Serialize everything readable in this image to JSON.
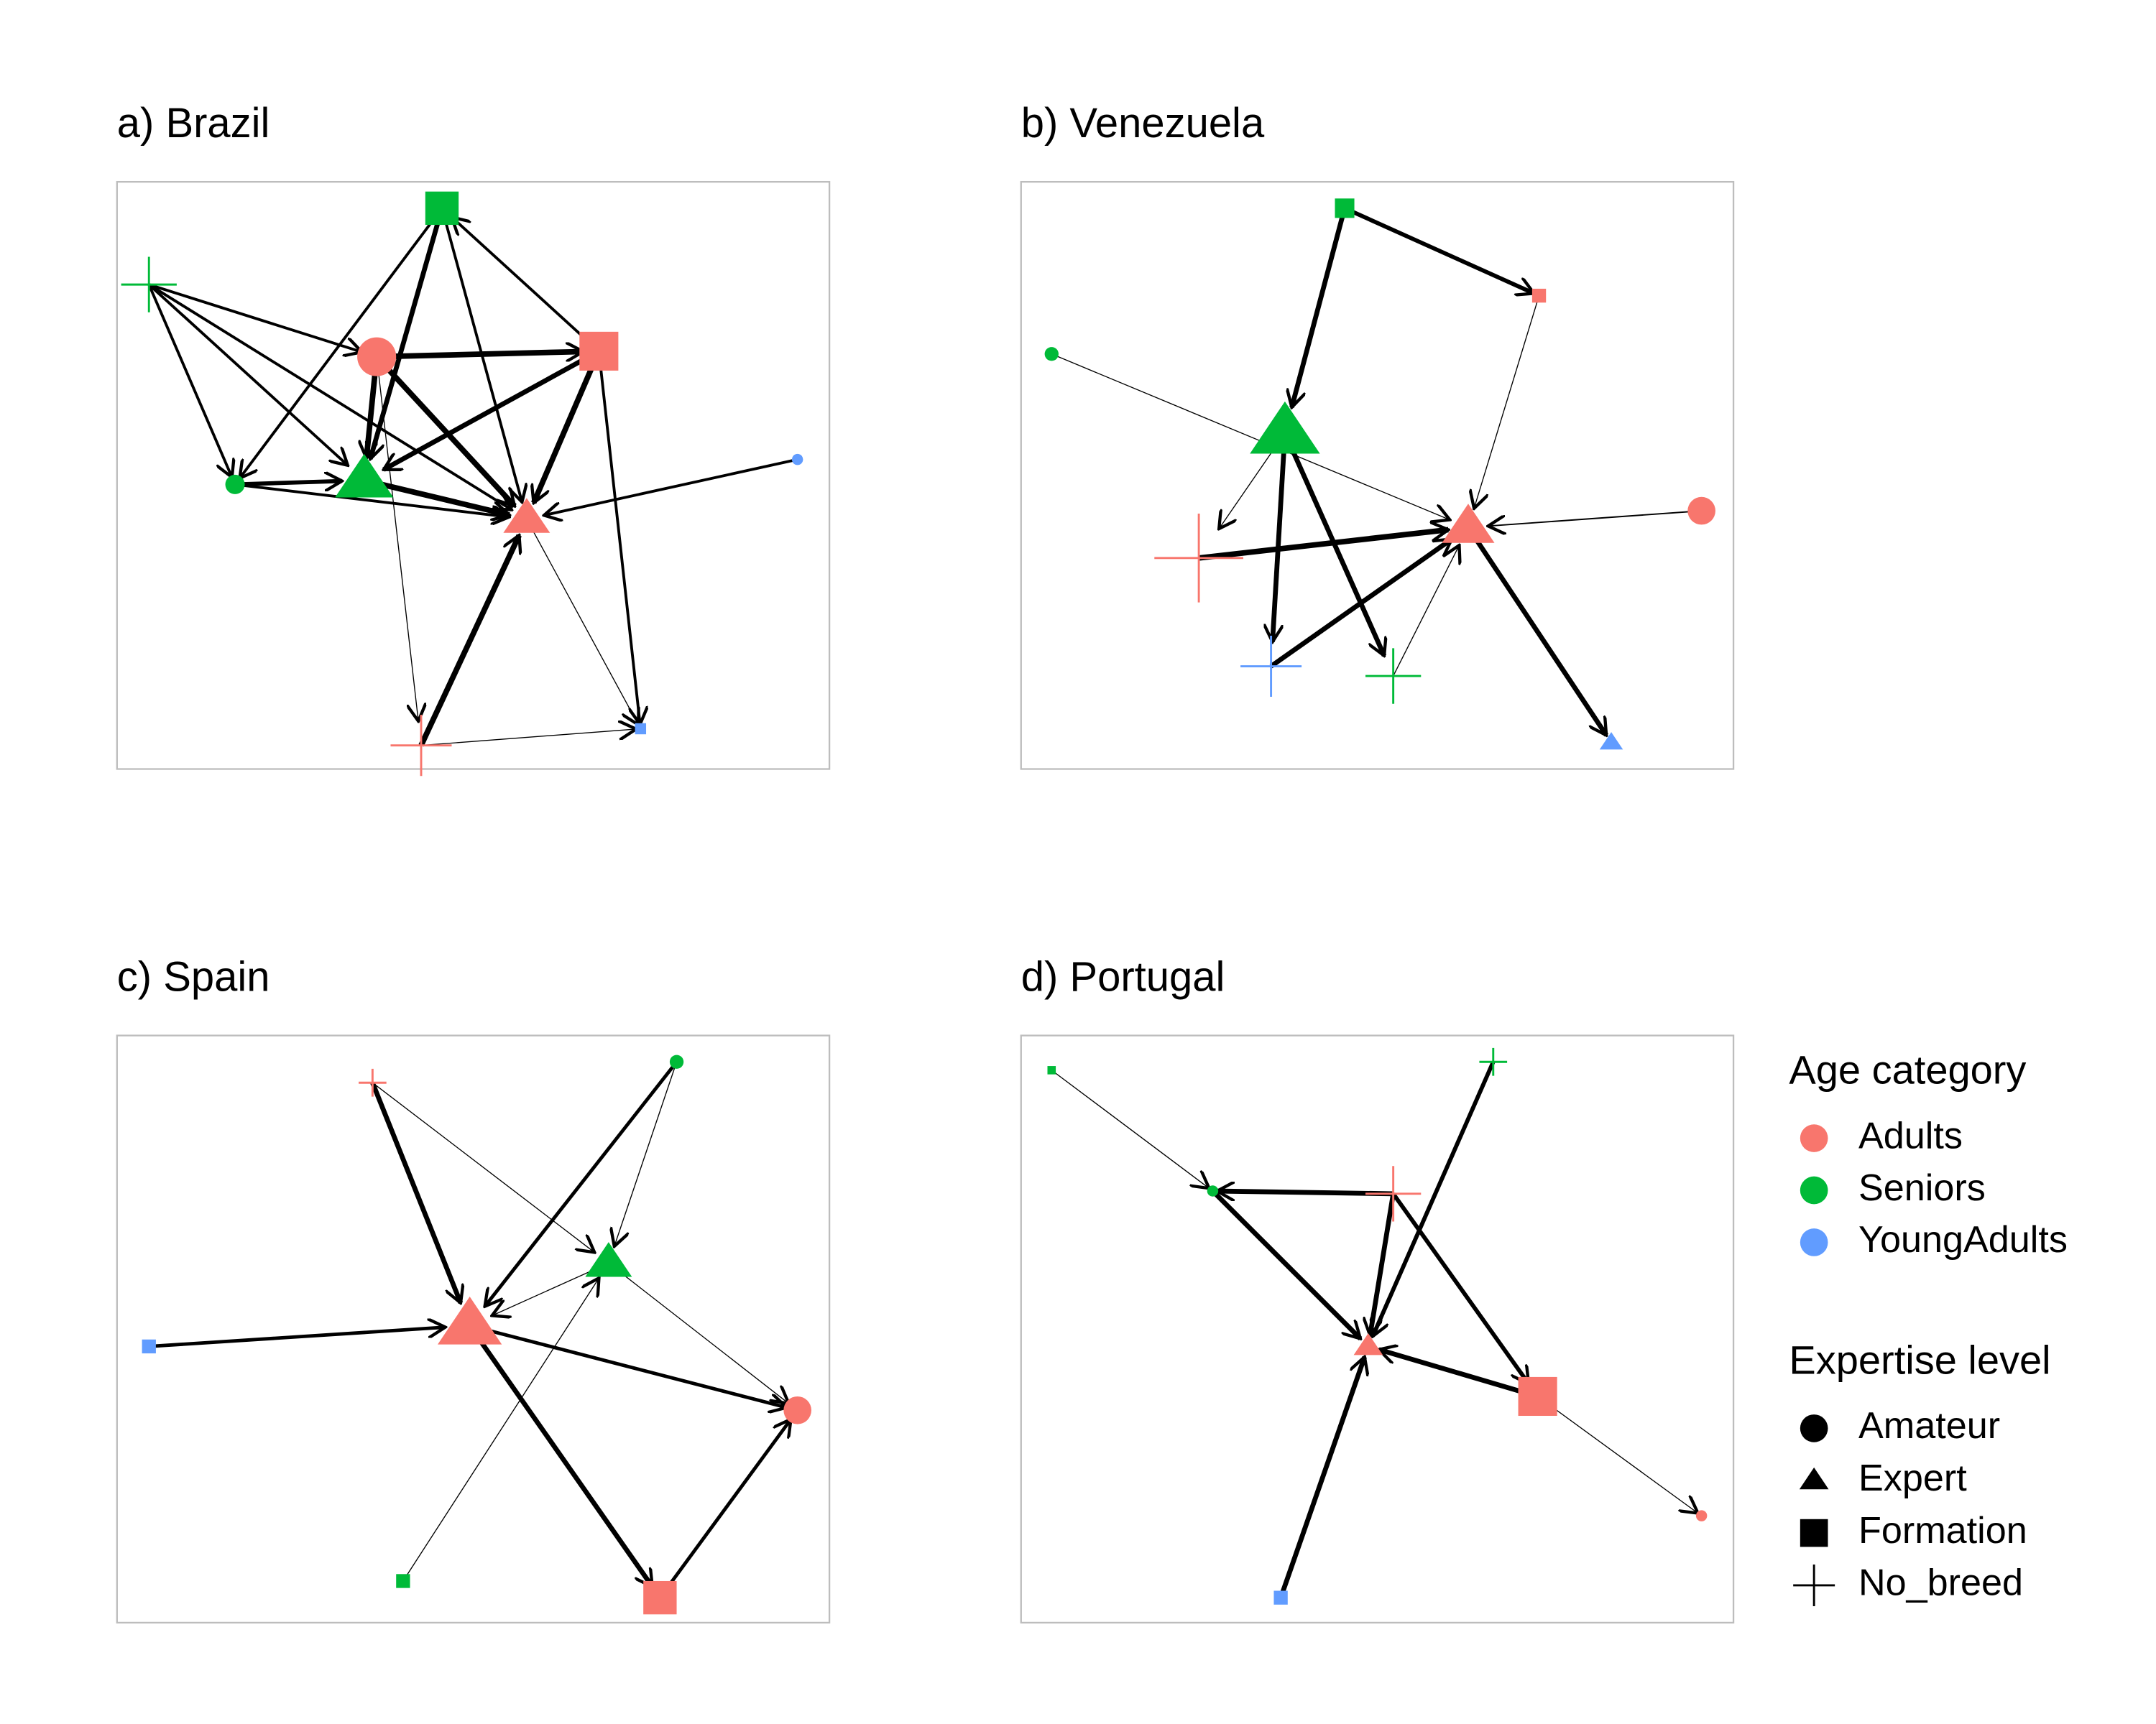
{
  "panels": [
    {
      "title": "a) Brazil"
    },
    {
      "title": "b) Venezuela"
    },
    {
      "title": "c) Spain"
    },
    {
      "title": "d) Portugal"
    }
  ],
  "legend": {
    "age_title": "Age category",
    "ages": [
      {
        "label": "Adults",
        "color": "#F8766D"
      },
      {
        "label": "Seniors",
        "color": "#00BA38"
      },
      {
        "label": "YoungAdults",
        "color": "#619CFF"
      }
    ],
    "expertise_title": "Expertise level",
    "expertise": [
      {
        "label": "Amateur"
      },
      {
        "label": "Expert"
      },
      {
        "label": "Formation"
      },
      {
        "label": "No_breed"
      }
    ]
  }
}
